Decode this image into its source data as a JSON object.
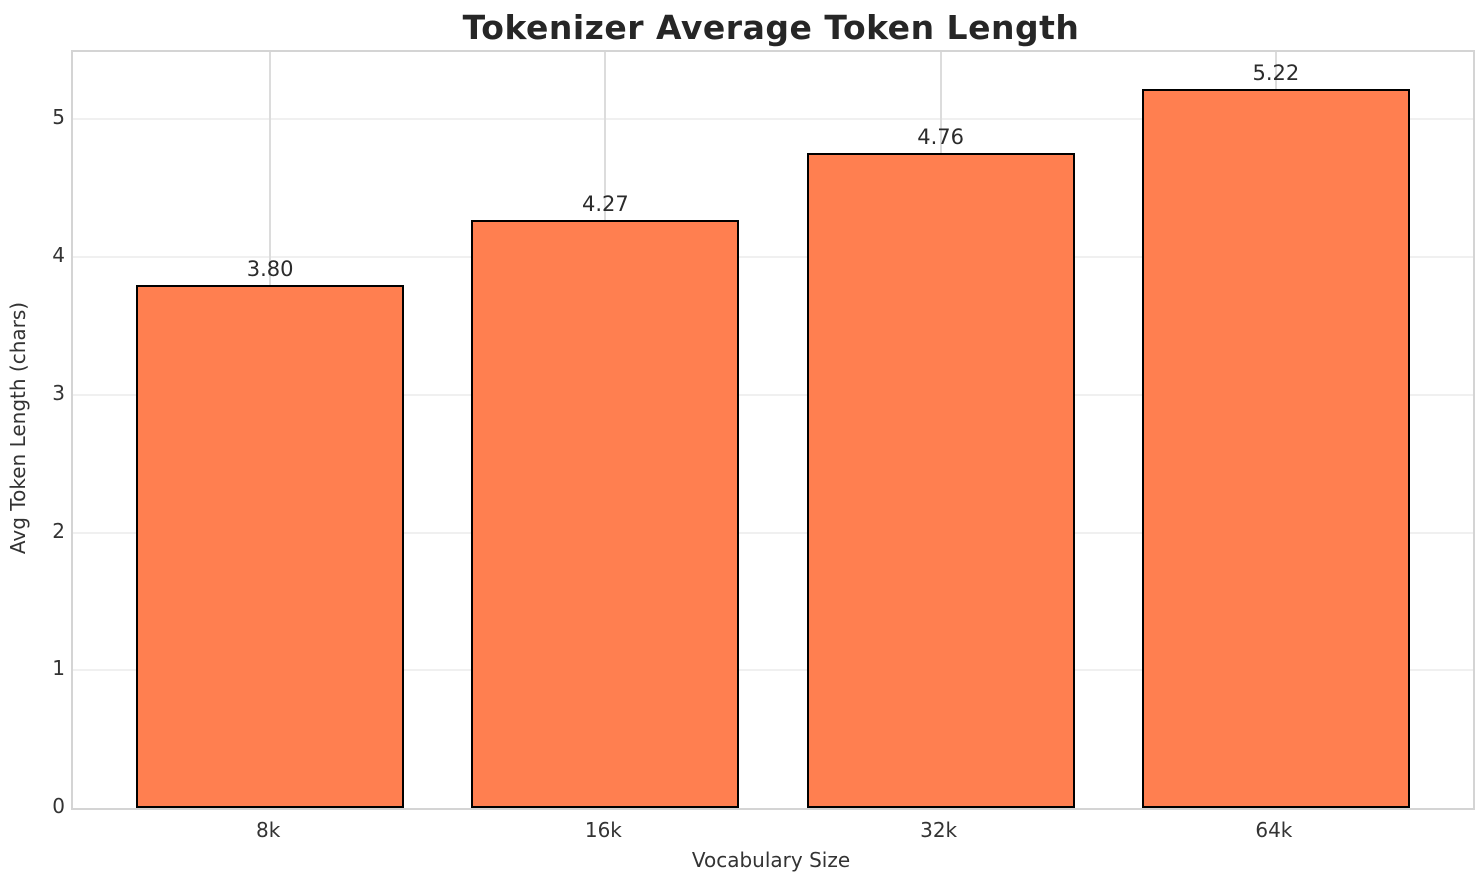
{
  "chart_data": {
    "type": "bar",
    "title": "Tokenizer Average Token Length",
    "xlabel": "Vocabulary Size",
    "ylabel": "Avg Token Length (chars)",
    "categories": [
      "8k",
      "16k",
      "32k",
      "64k"
    ],
    "values": [
      3.8,
      4.27,
      4.76,
      5.22
    ],
    "value_labels": [
      "3.80",
      "4.27",
      "4.76",
      "5.22"
    ],
    "yticks": [
      0,
      1,
      2,
      3,
      4,
      5
    ],
    "ytick_labels": [
      "0",
      "1",
      "2",
      "3",
      "4",
      "5"
    ],
    "ylim": [
      0,
      5.49
    ],
    "grid": true,
    "legend": "none",
    "bar_color": "#FF7F50",
    "bar_edge_color": "#000000",
    "h_gridline_color": "#f0f0f0",
    "v_gridline_color": "#dcdcdc",
    "spine_color": "#d4d4d4",
    "title_color": "#262626",
    "text_color": "#333333"
  }
}
